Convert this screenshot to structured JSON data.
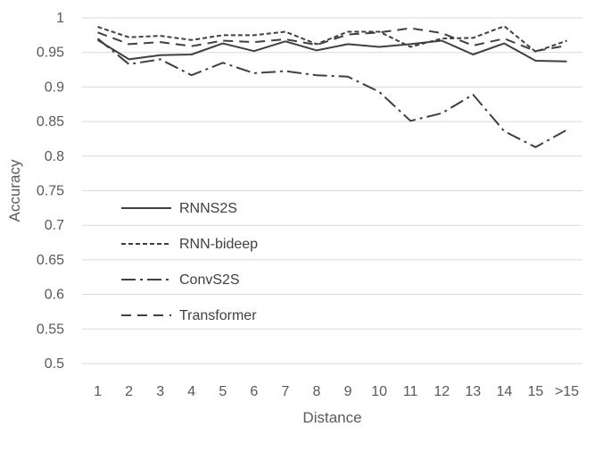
{
  "chart_data": {
    "type": "line",
    "xlabel": "Distance",
    "ylabel": "Accuracy",
    "categories": [
      "1",
      "2",
      "3",
      "4",
      "5",
      "6",
      "7",
      "8",
      "9",
      "10",
      "11",
      "12",
      "13",
      "14",
      "15",
      ">15"
    ],
    "ylim": [
      0.5,
      1
    ],
    "yticks": [
      "0.5",
      "0.55",
      "0.6",
      "0.65",
      "0.7",
      "0.75",
      "0.8",
      "0.85",
      "0.9",
      "0.95",
      "1"
    ],
    "grid": true,
    "legend_position": "left-center",
    "series": [
      {
        "name": "RNNS2S",
        "dash": "solid",
        "color": "#404040",
        "values": [
          0.968,
          0.94,
          0.946,
          0.947,
          0.963,
          0.952,
          0.966,
          0.953,
          0.962,
          0.958,
          0.962,
          0.967,
          0.947,
          0.963,
          0.938,
          0.937
        ]
      },
      {
        "name": "RNN-bideep",
        "dash": "short-dash",
        "color": "#404040",
        "values": [
          0.987,
          0.972,
          0.974,
          0.968,
          0.975,
          0.975,
          0.98,
          0.962,
          0.98,
          0.98,
          0.958,
          0.97,
          0.971,
          0.988,
          0.951,
          0.967
        ]
      },
      {
        "name": "ConvS2S",
        "dash": "dash-dot",
        "color": "#404040",
        "values": [
          0.97,
          0.933,
          0.94,
          0.917,
          0.935,
          0.92,
          0.923,
          0.917,
          0.915,
          0.893,
          0.851,
          0.862,
          0.889,
          0.836,
          0.813,
          0.838
        ]
      },
      {
        "name": "Transformer",
        "dash": "long-dash",
        "color": "#404040",
        "values": [
          0.979,
          0.962,
          0.965,
          0.959,
          0.967,
          0.965,
          0.969,
          0.961,
          0.976,
          0.979,
          0.985,
          0.978,
          0.96,
          0.97,
          0.952,
          0.96
        ]
      }
    ]
  }
}
